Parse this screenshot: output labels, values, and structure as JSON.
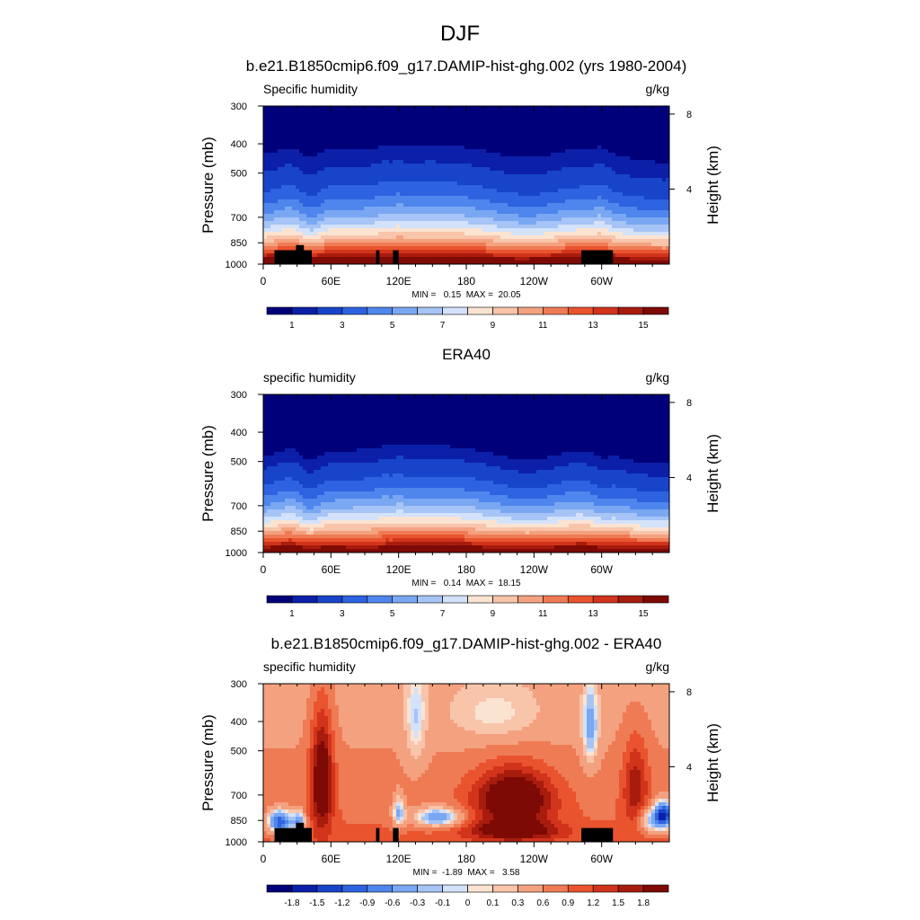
{
  "figure_title": "DJF",
  "chart_data": [
    {
      "type": "heatmap",
      "title": "b.e21.B1850cmip6.f09_g17.DAMIP-hist-ghg.002 (yrs 1980-2004)",
      "left_label": "Specific humidity",
      "units": "g/kg",
      "ylabel": "Pressure (mb)",
      "y2label": "Height (km)",
      "pressure_ticks": [
        300,
        400,
        500,
        700,
        850,
        1000
      ],
      "height_ticks": [
        8,
        4
      ],
      "x_ticks": [
        "0",
        "60E",
        "120E",
        "180",
        "120W",
        "60W"
      ],
      "x_tick_positions": [
        0,
        60,
        120,
        180,
        240,
        300
      ],
      "xlim": [
        0,
        360
      ],
      "ylim": [
        1000,
        300
      ],
      "stats_text": "MIN =   0.15  MAX =  20.05",
      "min": 0.15,
      "max": 20.05,
      "colorbar_labels": [
        "1",
        "3",
        "5",
        "7",
        "9",
        "11",
        "13",
        "15"
      ],
      "colorbar_levels": [
        0.5,
        1,
        2,
        3,
        4,
        5,
        6,
        7,
        8,
        9,
        10,
        11,
        12,
        13,
        14,
        15,
        16
      ],
      "field": "clim",
      "topography": true
    },
    {
      "type": "heatmap",
      "title": "ERA40",
      "left_label": "specific humidity",
      "units": "g/kg",
      "ylabel": "Pressure (mb)",
      "y2label": "Height (km)",
      "pressure_ticks": [
        300,
        400,
        500,
        700,
        850,
        1000
      ],
      "height_ticks": [
        8,
        4
      ],
      "x_ticks": [
        "0",
        "60E",
        "120E",
        "180",
        "120W",
        "60W"
      ],
      "x_tick_positions": [
        0,
        60,
        120,
        180,
        240,
        300
      ],
      "xlim": [
        0,
        360
      ],
      "ylim": [
        1000,
        300
      ],
      "stats_text": "MIN =   0.14  MAX =  18.15",
      "min": 0.14,
      "max": 18.15,
      "colorbar_labels": [
        "1",
        "3",
        "5",
        "7",
        "9",
        "11",
        "13",
        "15"
      ],
      "colorbar_levels": [
        0.5,
        1,
        2,
        3,
        4,
        5,
        6,
        7,
        8,
        9,
        10,
        11,
        12,
        13,
        14,
        15,
        16
      ],
      "field": "obs",
      "topography": false
    },
    {
      "type": "heatmap",
      "title": "b.e21.B1850cmip6.f09_g17.DAMIP-hist-ghg.002 - ERA40",
      "left_label": "specific humidity",
      "units": "g/kg",
      "ylabel": "Pressure (mb)",
      "y2label": "Height (km)",
      "pressure_ticks": [
        300,
        400,
        500,
        700,
        850,
        1000
      ],
      "height_ticks": [
        8,
        4
      ],
      "x_ticks": [
        "0",
        "60E",
        "120E",
        "180",
        "120W",
        "60W"
      ],
      "x_tick_positions": [
        0,
        60,
        120,
        180,
        240,
        300
      ],
      "xlim": [
        0,
        360
      ],
      "ylim": [
        1000,
        300
      ],
      "stats_text": "MIN =  -1.89  MAX =   3.58",
      "min": -1.89,
      "max": 3.58,
      "colorbar_labels": [
        "-1.8",
        "-1.5",
        "-1.2",
        "-0.9",
        "-0.6",
        "-0.3",
        "-0.1",
        "0",
        "0.1",
        "0.3",
        "0.6",
        "0.9",
        "1.2",
        "1.5",
        "1.8"
      ],
      "colorbar_levels": [
        -1.8,
        -1.5,
        -1.2,
        -0.9,
        -0.6,
        -0.3,
        -0.1,
        0,
        0.1,
        0.3,
        0.6,
        0.9,
        1.2,
        1.5,
        1.8
      ],
      "field": "diff",
      "topography": true
    }
  ],
  "colormap": [
    "#00007a",
    "#0c1fa8",
    "#1744c8",
    "#2d63e0",
    "#4f86ed",
    "#7aa7f2",
    "#a6c4f5",
    "#d3e2fa",
    "#fbe3d2",
    "#f8c4aa",
    "#f4a17f",
    "#ef7b55",
    "#e9542f",
    "#d1341b",
    "#a81c0e",
    "#7d0a05"
  ],
  "topography_color": "#000000"
}
